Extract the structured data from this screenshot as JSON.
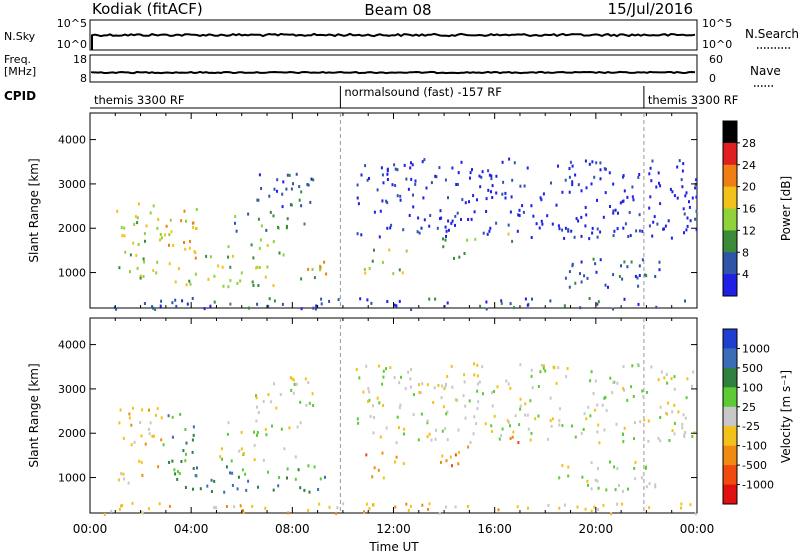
{
  "header": {
    "station": "Kodiak (fitACF)",
    "beam": "Beam 08",
    "date": "15/Jul/2016"
  },
  "noise_panel": {
    "left_label": "N.Sky",
    "right_label": "N.Search",
    "tick_top": "10^5",
    "tick_bottom": "10^0"
  },
  "freq_panel": {
    "left_label_line1": "Freq.",
    "left_label_line2": "[MHz]",
    "left_tick_top": "18",
    "left_tick_bottom": "8",
    "right_label": "Nave",
    "right_tick_top": "60",
    "right_tick_bottom": "0"
  },
  "cpid_panel": {
    "label": "CPID",
    "segments": [
      {
        "text": "themis 3300 RF",
        "start_hour": 0.0,
        "end_hour": 9.9
      },
      {
        "text": "normalsound (fast) -157 RF",
        "start_hour": 9.9,
        "end_hour": 21.9
      },
      {
        "text": "themis 3300 RF",
        "start_hour": 21.9,
        "end_hour": 24.0
      }
    ]
  },
  "chart_data": [
    {
      "type": "heatmap",
      "name": "power",
      "ylabel": "Slant Range [km]",
      "colorbar_label": "Power [dB]",
      "ylim": [
        200,
        4600
      ],
      "xlim": [
        0,
        24
      ],
      "yticks": [
        1000,
        2000,
        3000,
        4000
      ],
      "colorbar_ticks": [
        "4",
        "8",
        "12",
        "16",
        "20",
        "24",
        "28"
      ],
      "colorbar_colors": [
        "#1f1fe6",
        "#2e55a8",
        "#3a8a3a",
        "#8fd23a",
        "#f2c21a",
        "#f07f13",
        "#e02020"
      ],
      "scatter_regions": [
        {
          "x0": 1.0,
          "x1": 2.8,
          "y0": 900,
          "y1": 2600,
          "level": 3
        },
        {
          "x0": 2.8,
          "x1": 4.2,
          "y0": 1200,
          "y1": 2500,
          "level": 4
        },
        {
          "x0": 4.5,
          "x1": 8.2,
          "y0": 1350,
          "y1": 1800,
          "level": 3
        },
        {
          "x0": 5.2,
          "x1": 8.6,
          "y0": 1950,
          "y1": 2400,
          "level": 2
        },
        {
          "x0": 6.5,
          "x1": 8.8,
          "y0": 2500,
          "y1": 3300,
          "level": 1
        },
        {
          "x0": 3.3,
          "x1": 9.3,
          "y0": 700,
          "y1": 1200,
          "level": 3
        },
        {
          "x0": 8.0,
          "x1": 9.4,
          "y0": 900,
          "y1": 1300,
          "level": 5
        },
        {
          "x0": 10.8,
          "x1": 12.6,
          "y0": 1000,
          "y1": 1600,
          "level": 3
        },
        {
          "x0": 13.8,
          "x1": 15.2,
          "y0": 1300,
          "y1": 1800,
          "level": 2
        },
        {
          "x0": 16.4,
          "x1": 17.1,
          "y0": 1700,
          "y1": 2000,
          "level": 3
        },
        {
          "x0": 18.5,
          "x1": 22.5,
          "y0": 700,
          "y1": 1400,
          "level": 1
        },
        {
          "x0": 0.0,
          "x1": 24.0,
          "y0": 200,
          "y1": 450,
          "level": 1
        },
        {
          "x0": 10.5,
          "x1": 24.0,
          "y0": 1800,
          "y1": 3600,
          "level": 0
        }
      ]
    },
    {
      "type": "heatmap",
      "name": "velocity",
      "ylabel": "Slant Range [km]",
      "colorbar_label": "Velocity [m s⁻¹]",
      "xlabel": "Time UT",
      "ylim": [
        200,
        4600
      ],
      "xlim": [
        0,
        24
      ],
      "yticks": [
        1000,
        2000,
        3000,
        4000
      ],
      "xticks": [
        "00:00",
        "04:00",
        "08:00",
        "12:00",
        "16:00",
        "20:00",
        "00:00"
      ],
      "colorbar_ticks": [
        "1000",
        "500",
        "100",
        "25",
        "-25",
        "-100",
        "-500",
        "-1000"
      ],
      "colorbar_colors": [
        "#1f3fd0",
        "#3a6cb8",
        "#2f7f3f",
        "#5ccb34",
        "#c8c8c8",
        "#f2c21a",
        "#f08a10",
        "#f04a10",
        "#e01010"
      ],
      "scatter_regions": [
        {
          "x0": 1.0,
          "x1": 2.8,
          "y0": 900,
          "y1": 2600,
          "level": 5
        },
        {
          "x0": 2.8,
          "x1": 4.2,
          "y0": 1000,
          "y1": 2500,
          "level": 2
        },
        {
          "x0": 4.5,
          "x1": 8.2,
          "y0": 1350,
          "y1": 1800,
          "level": 4
        },
        {
          "x0": 5.2,
          "x1": 8.6,
          "y0": 1950,
          "y1": 2400,
          "level": 4
        },
        {
          "x0": 6.5,
          "x1": 8.8,
          "y0": 2500,
          "y1": 3300,
          "level": 4
        },
        {
          "x0": 3.3,
          "x1": 9.3,
          "y0": 700,
          "y1": 1300,
          "level": 2
        },
        {
          "x0": 10.8,
          "x1": 12.6,
          "y0": 1000,
          "y1": 1600,
          "level": 6
        },
        {
          "x0": 13.8,
          "x1": 15.2,
          "y0": 1300,
          "y1": 1800,
          "level": 6
        },
        {
          "x0": 16.4,
          "x1": 17.1,
          "y0": 1700,
          "y1": 2000,
          "level": 6
        },
        {
          "x0": 18.5,
          "x1": 22.5,
          "y0": 700,
          "y1": 1400,
          "level": 4
        },
        {
          "x0": 0.0,
          "x1": 24.0,
          "y0": 200,
          "y1": 450,
          "level": 5
        },
        {
          "x0": 10.5,
          "x1": 24.0,
          "y0": 1800,
          "y1": 3600,
          "level": 4
        }
      ]
    }
  ]
}
